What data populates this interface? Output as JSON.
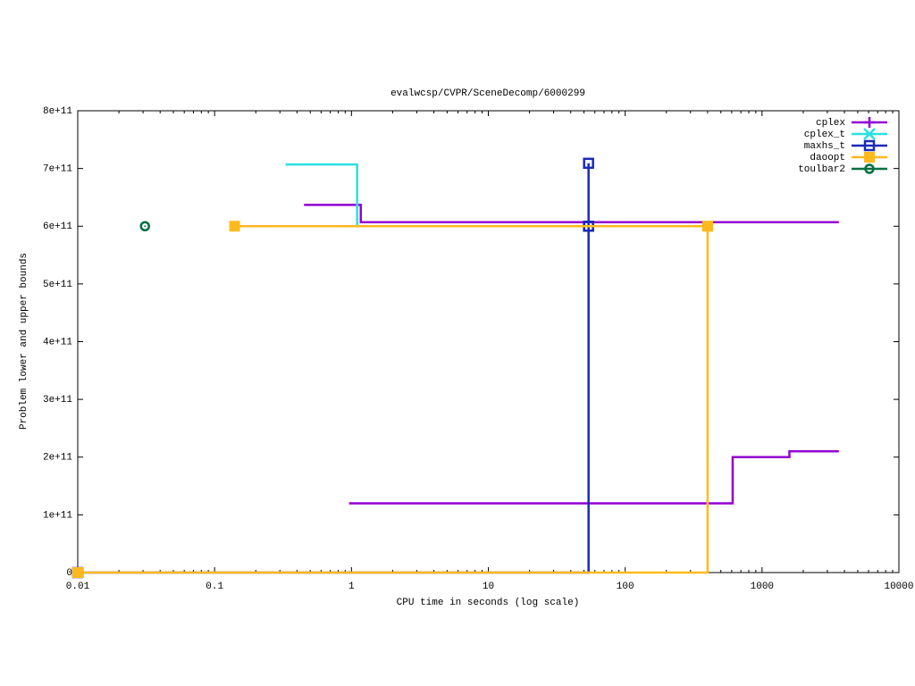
{
  "chart_data": {
    "type": "step",
    "title": "evalwcsp/CVPR/SceneDecomp/6000299",
    "xlabel": "CPU time in seconds (log scale)",
    "ylabel": "Problem lower and upper bounds",
    "xscale": "log",
    "xlim": [
      0.01,
      10000
    ],
    "xticks": [
      0.01,
      0.1,
      1,
      10,
      100,
      1000,
      10000
    ],
    "ylim": [
      0,
      800000000000
    ],
    "yticks": [
      0,
      {
        "value": 100000000000,
        "label": "1e+11"
      },
      {
        "value": 200000000000,
        "label": "2e+11"
      },
      {
        "value": 300000000000,
        "label": "3e+11"
      },
      {
        "value": 400000000000,
        "label": "4e+11"
      },
      {
        "value": 500000000000,
        "label": "5e+11"
      },
      {
        "value": 600000000000,
        "label": "6e+11"
      },
      {
        "value": 700000000000,
        "label": "7e+11"
      },
      {
        "value": 800000000000,
        "label": "8e+11"
      }
    ],
    "legend": "top-right",
    "series": [
      {
        "name": "cplex",
        "color": "#9400d3",
        "marker": "plus",
        "markers": false,
        "x": [
          0.45,
          1.17,
          3640,
          null,
          0.96,
          610,
          1585,
          3640
        ],
        "values": [
          637000000000,
          607000000000,
          607000000000,
          null,
          120000000000,
          200000000000,
          210000000000,
          210000000000
        ]
      },
      {
        "name": "cplex_t",
        "color": "#2ae0e0",
        "marker": "cross",
        "markers": false,
        "x": [
          0.33,
          1.1
        ],
        "values": [
          707000000000,
          600000000000
        ]
      },
      {
        "name": "maxhs_t",
        "color": "#1a2ab8",
        "marker": "square-open",
        "markers": true,
        "x": [
          54,
          54,
          null,
          0.01,
          54
        ],
        "values": [
          709000000000,
          600000000000,
          null,
          0,
          600000000000
        ]
      },
      {
        "name": "daoopt",
        "color": "#ffb91e",
        "marker": "square-filled",
        "markers": true,
        "x": [
          0.14,
          400,
          null,
          0.01,
          400
        ],
        "values": [
          600000000000,
          600000000000,
          null,
          0,
          600000000000
        ]
      },
      {
        "name": "toulbar2",
        "color": "#00703f",
        "marker": "circle-dot",
        "markers": true,
        "x": [
          0.031
        ],
        "values": [
          600000000000
        ]
      }
    ]
  }
}
